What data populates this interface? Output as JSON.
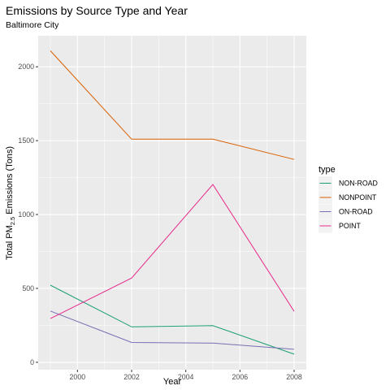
{
  "chart_data": {
    "type": "line",
    "title": "Emissions by Source Type and Year",
    "subtitle": "Baltimore City",
    "xlabel": "Year",
    "ylabel": {
      "prefix": "Total PM",
      "subscript": "2.5",
      "suffix": " Emissions (Tons)"
    },
    "x": [
      1999,
      2002,
      2005,
      2008
    ],
    "x_ticks": [
      2000,
      2002,
      2004,
      2006,
      2008
    ],
    "y_ticks": [
      0,
      500,
      1000,
      1500,
      2000
    ],
    "xlim": [
      1998.55,
      2008.45
    ],
    "ylim": [
      -50,
      2210
    ],
    "legend_title": "type",
    "legend_position": "right",
    "grid": true,
    "series": [
      {
        "name": "NON-ROAD",
        "color": "#1b9e77",
        "values": [
          522,
          240,
          248,
          55
        ]
      },
      {
        "name": "NONPOINT",
        "color": "#d95f02",
        "values": [
          2108,
          1510,
          1510,
          1373
        ]
      },
      {
        "name": "ON-ROAD",
        "color": "#7570b3",
        "values": [
          347,
          134,
          130,
          88
        ]
      },
      {
        "name": "POINT",
        "color": "#e7298a",
        "values": [
          296,
          570,
          1203,
          345
        ]
      }
    ]
  }
}
